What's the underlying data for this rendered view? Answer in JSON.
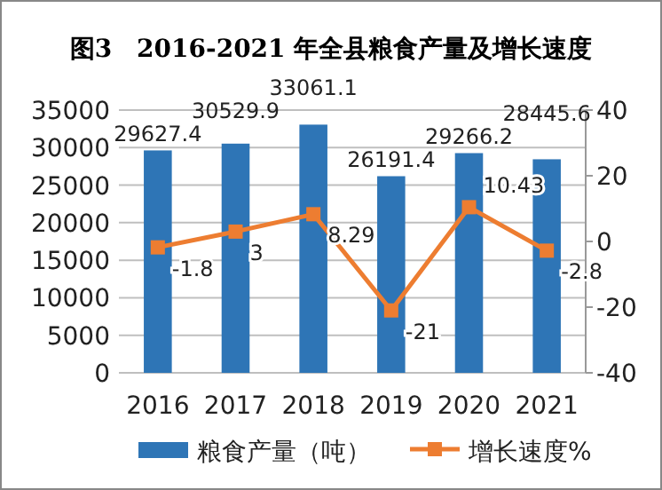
{
  "chart_data": {
    "type": "bar",
    "title": "图3　2016-2021 年全县粮食产量及增长速度",
    "categories": [
      "2016",
      "2017",
      "2018",
      "2019",
      "2020",
      "2021"
    ],
    "series": [
      {
        "name": "粮食产量（吨）",
        "color": "#2e75b6",
        "values": [
          29627.4,
          30529.9,
          33061.1,
          26191.4,
          29266.2,
          28445.6
        ]
      },
      {
        "name": "增长速度%",
        "type": "line",
        "axis": "y2",
        "color": "#ed7d31",
        "marker": "square",
        "values": [
          -1.8,
          3,
          8.29,
          -21,
          10.43,
          -2.8
        ]
      }
    ],
    "ylim": [
      0,
      35000
    ],
    "yticks": [
      0,
      5000,
      10000,
      15000,
      20000,
      25000,
      30000,
      35000
    ],
    "y2lim": [
      -40,
      40
    ],
    "y2ticks": [
      -40,
      -20,
      0,
      20,
      40
    ],
    "grid": "y",
    "legend": "bottom",
    "data_labels": true
  }
}
